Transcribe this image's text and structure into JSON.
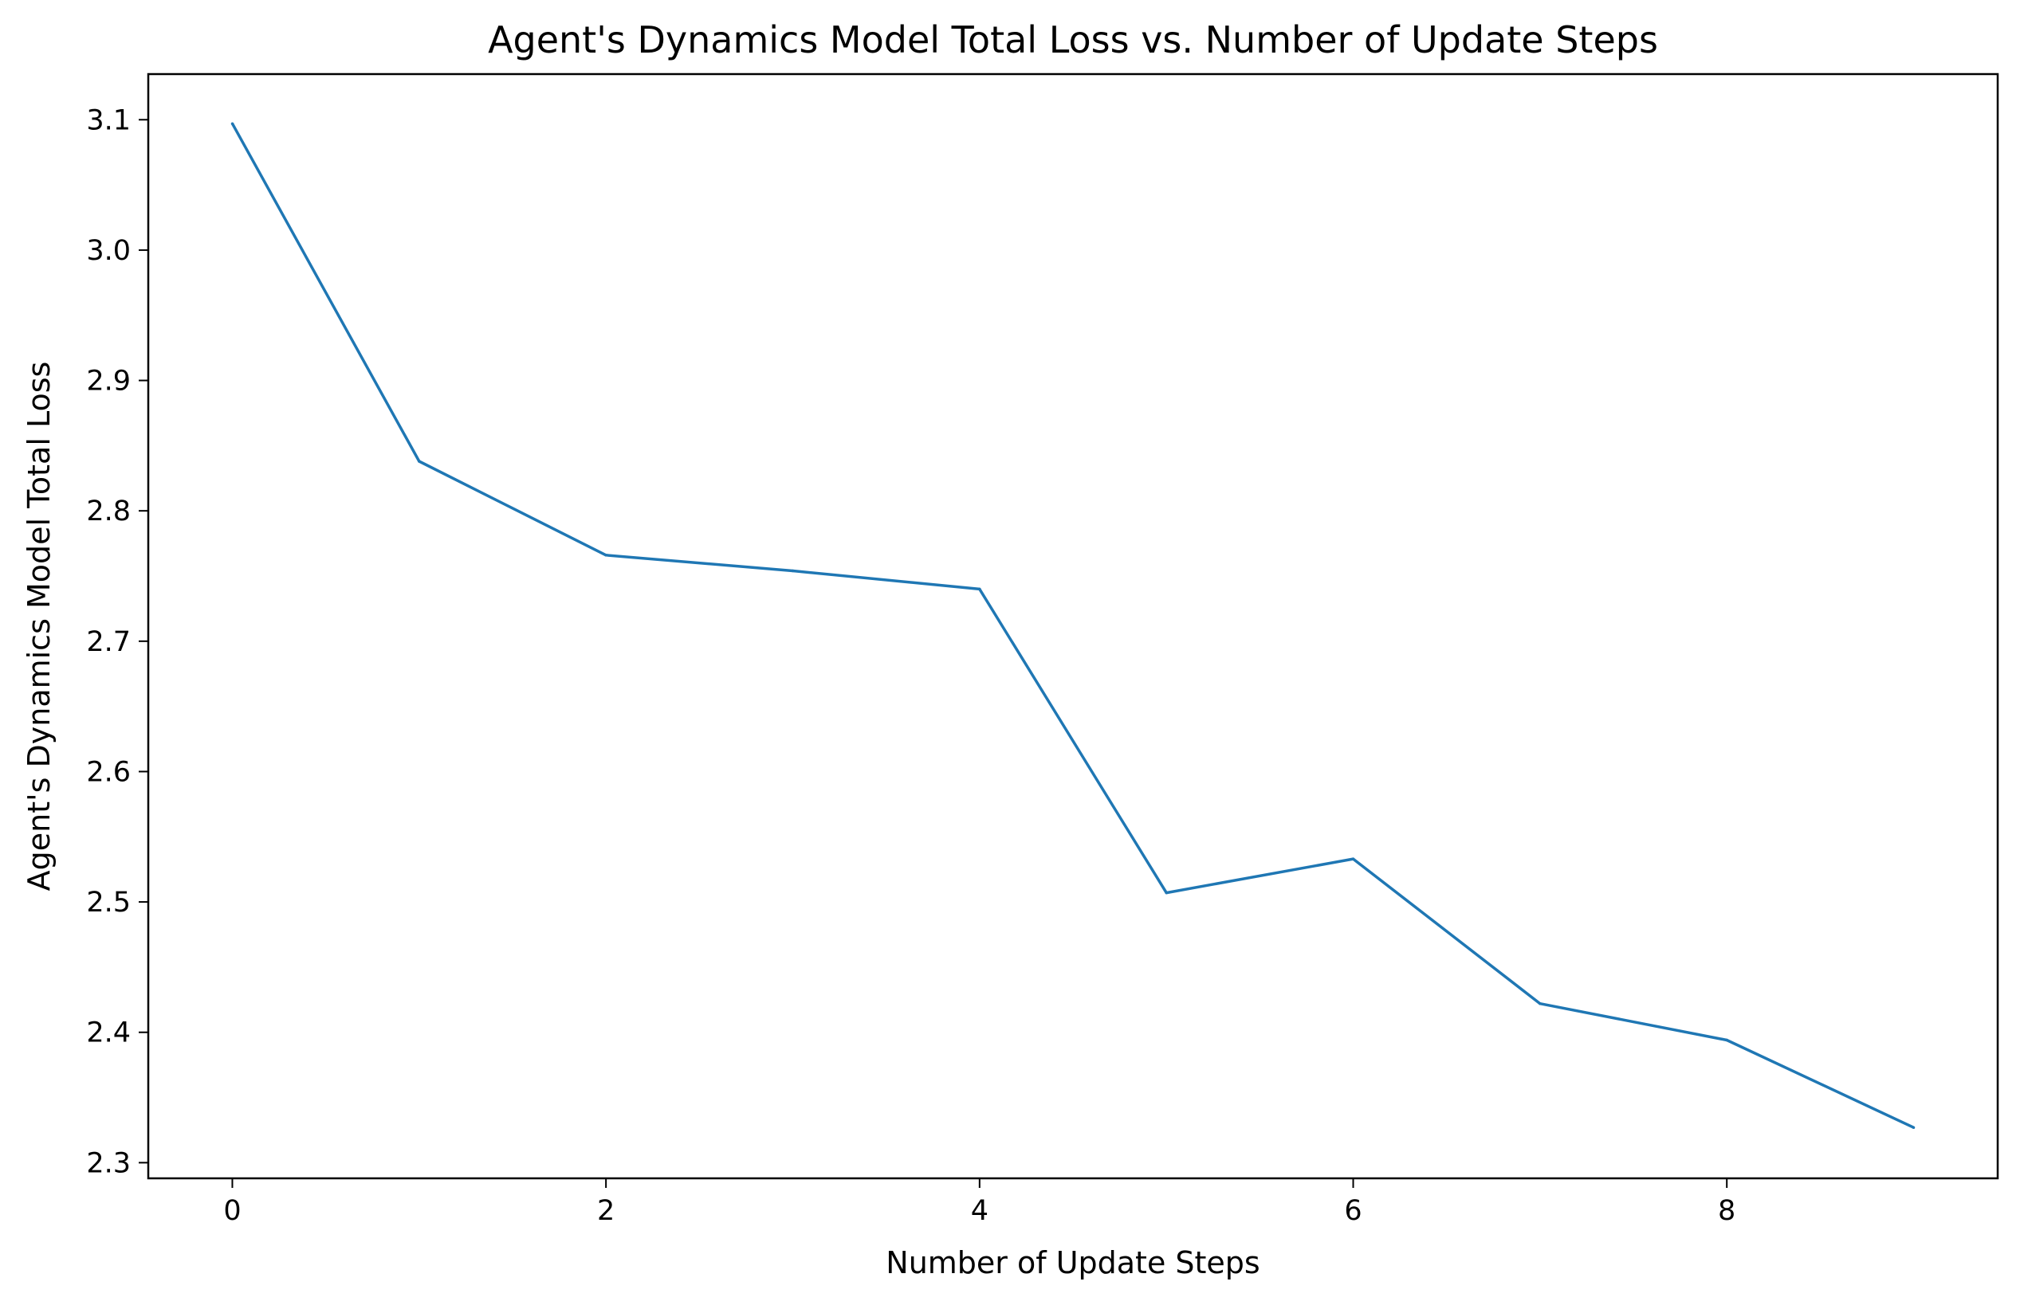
{
  "chart_data": {
    "type": "line",
    "title": "Agent's Dynamics Model Total Loss vs. Number of Update Steps",
    "xlabel": "Number of Update Steps",
    "ylabel": "Agent's Dynamics Model Total Loss",
    "xlim": [
      -0.45,
      9.45
    ],
    "ylim": [
      2.288,
      3.135
    ],
    "x_ticks": [
      0,
      2,
      4,
      6,
      8
    ],
    "x_tick_labels": [
      "0",
      "2",
      "4",
      "6",
      "8"
    ],
    "y_ticks": [
      2.3,
      2.4,
      2.5,
      2.6,
      2.7,
      2.8,
      2.9,
      3.0,
      3.1
    ],
    "y_tick_labels": [
      "2.3",
      "2.4",
      "2.5",
      "2.6",
      "2.7",
      "2.8",
      "2.9",
      "3.0",
      "3.1"
    ],
    "grid": false,
    "series": [
      {
        "color": "#1f77b4",
        "x": [
          0,
          1,
          2,
          3,
          4,
          5,
          6,
          7,
          8,
          9
        ],
        "y": [
          3.097,
          2.838,
          2.766,
          2.754,
          2.74,
          2.507,
          2.533,
          2.422,
          2.394,
          2.327
        ]
      }
    ]
  }
}
